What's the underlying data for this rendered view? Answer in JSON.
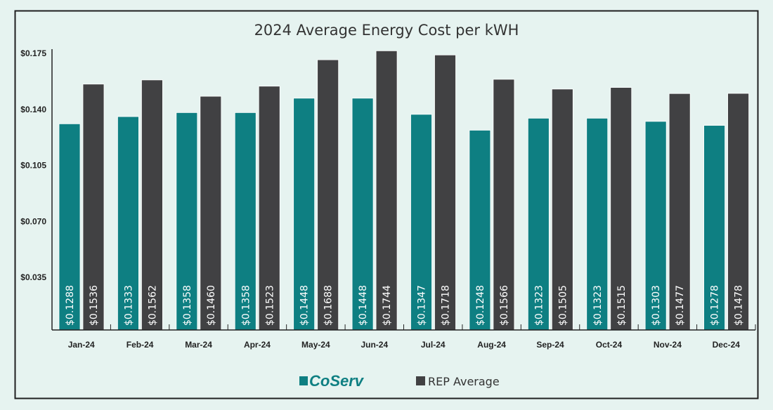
{
  "chart_data": {
    "type": "bar",
    "title": "2024 Average Energy Cost per kWH",
    "categories": [
      "Jan-24",
      "Feb-24",
      "Mar-24",
      "Apr-24",
      "May-24",
      "Jun-24",
      "Jul-24",
      "Aug-24",
      "Sep-24",
      "Oct-24",
      "Nov-24",
      "Dec-24"
    ],
    "series": [
      {
        "name": "CoServ",
        "color": "#0e7f82",
        "values": [
          0.1288,
          0.1333,
          0.1358,
          0.1358,
          0.1448,
          0.1448,
          0.1347,
          0.1248,
          0.1323,
          0.1323,
          0.1303,
          0.1278
        ]
      },
      {
        "name": "REP Average",
        "color": "#414143",
        "values": [
          0.1536,
          0.1562,
          0.146,
          0.1523,
          0.1688,
          0.1744,
          0.1718,
          0.1566,
          0.1505,
          0.1515,
          0.1477,
          0.1478
        ]
      }
    ],
    "data_labels": [
      [
        "$0.1288",
        "$0.1333",
        "$0.1358",
        "$0.1358",
        "$0.1448",
        "$0.1448",
        "$0.1347",
        "$0.1248",
        "$0.1323",
        "$0.1323",
        "$0.1303",
        "$0.1278"
      ],
      [
        "$0.1536",
        "$0.1562",
        "$0.1460",
        "$0.1523",
        "$0.1688",
        "$0.1744",
        "$0.1718",
        "$0.1566",
        "$0.1505",
        "$0.1515",
        "$0.1477",
        "$0.1478"
      ]
    ],
    "yticks": [
      0.035,
      0.07,
      0.105,
      0.14,
      0.175
    ],
    "ytick_labels": [
      "$0.035",
      "$0.070",
      "$0.105",
      "$0.140",
      "$0.175"
    ],
    "ylim": [
      0,
      0.175
    ],
    "xlabel": "",
    "ylabel": "",
    "grid": false,
    "legend": {
      "position": "bottom",
      "labels": [
        "CoServ",
        "REP Average"
      ]
    }
  }
}
